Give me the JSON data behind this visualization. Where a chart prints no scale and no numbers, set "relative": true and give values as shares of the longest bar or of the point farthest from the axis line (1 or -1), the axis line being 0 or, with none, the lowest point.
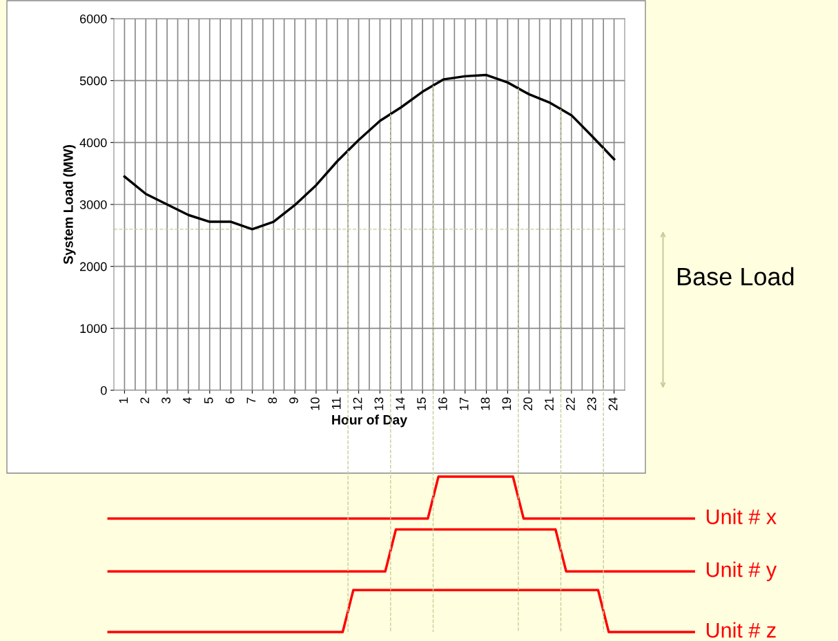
{
  "chart_data": [
    {
      "type": "line",
      "xlabel": "Hour of Day",
      "ylabel": "System Load (MW)",
      "x": [
        1,
        2,
        3,
        4,
        5,
        6,
        7,
        8,
        9,
        10,
        11,
        12,
        13,
        14,
        15,
        16,
        17,
        18,
        19,
        20,
        21,
        22,
        23,
        24
      ],
      "series": [
        {
          "color": "#000000",
          "values": [
            3450,
            3170,
            3000,
            2830,
            2720,
            2720,
            2600,
            2720,
            2990,
            3310,
            3700,
            4040,
            4350,
            4570,
            4820,
            5020,
            5070,
            5090,
            4970,
            4780,
            4640,
            4440,
            4090,
            3730
          ]
        }
      ],
      "xlim": [
        0.5,
        24.5
      ],
      "xticks": [
        1,
        2,
        3,
        4,
        5,
        6,
        7,
        8,
        9,
        10,
        11,
        12,
        13,
        14,
        15,
        16,
        17,
        18,
        19,
        20,
        21,
        22,
        23,
        24
      ],
      "ylim": [
        0,
        6000
      ],
      "yticks": [
        0,
        1000,
        2000,
        3000,
        4000,
        5000,
        6000
      ],
      "grid": true,
      "marker": "none",
      "line_style": "solid",
      "ref_lines": [
        {
          "axis": "y",
          "value": 2600,
          "label": "Base Load",
          "color": "#c8cc99",
          "line_style": "dashed"
        },
        {
          "axis": "x",
          "value": 11.5,
          "color": "#c8cc99",
          "line_style": "dashed"
        },
        {
          "axis": "x",
          "value": 13.5,
          "color": "#c8cc99",
          "line_style": "dashed"
        },
        {
          "axis": "x",
          "value": 15.5,
          "color": "#c8cc99",
          "line_style": "dashed"
        },
        {
          "axis": "x",
          "value": 19.5,
          "color": "#c8cc99",
          "line_style": "dashed"
        },
        {
          "axis": "x",
          "value": 21.5,
          "color": "#c8cc99",
          "line_style": "dashed"
        },
        {
          "axis": "x",
          "value": 23.5,
          "color": "#c8cc99",
          "line_style": "dashed"
        }
      ]
    },
    {
      "type": "line",
      "relative": true,
      "tick_labels": false,
      "legend": false,
      "categories": [
        null,
        null,
        null,
        null,
        null,
        null,
        null,
        null,
        null,
        null,
        null,
        null,
        null,
        null,
        null,
        null,
        null,
        null,
        null,
        null,
        null,
        null,
        null,
        null,
        null,
        null,
        null,
        null,
        null,
        null,
        null,
        null,
        null,
        null,
        null,
        null,
        null,
        null,
        null,
        null,
        null,
        null,
        null,
        null,
        null,
        null,
        null,
        null,
        null,
        null,
        null,
        null,
        null,
        null,
        null,
        null
      ],
      "series": [
        {
          "name": "Unit # x",
          "color": "#ff0000",
          "values": [
            0.73,
            0.73,
            0.73,
            0.73,
            0.73,
            0.73,
            0.73,
            0.73,
            0.73,
            0.73,
            0.73,
            0.73,
            0.73,
            0.73,
            0.73,
            0.73,
            0.73,
            0.73,
            0.73,
            0.73,
            0.73,
            0.73,
            0.73,
            0.73,
            0.73,
            0.73,
            0.73,
            0.73,
            0.73,
            0.73,
            0.73,
            1.0,
            1.0,
            1.0,
            1.0,
            1.0,
            1.0,
            1.0,
            1.0,
            0.73,
            0.73,
            0.73,
            0.73,
            0.73,
            0.73,
            0.73,
            0.73,
            0.73,
            0.73,
            0.73,
            0.73,
            0.73,
            0.73,
            0.73,
            0.73,
            0.73
          ]
        },
        {
          "name": "Unit # y",
          "color": "#ff0000",
          "values": [
            0.39,
            0.39,
            0.39,
            0.39,
            0.39,
            0.39,
            0.39,
            0.39,
            0.39,
            0.39,
            0.39,
            0.39,
            0.39,
            0.39,
            0.39,
            0.39,
            0.39,
            0.39,
            0.39,
            0.39,
            0.39,
            0.39,
            0.39,
            0.39,
            0.39,
            0.39,
            0.39,
            0.66,
            0.66,
            0.66,
            0.66,
            0.66,
            0.66,
            0.66,
            0.66,
            0.66,
            0.66,
            0.66,
            0.66,
            0.66,
            0.66,
            0.66,
            0.66,
            0.39,
            0.39,
            0.39,
            0.39,
            0.39,
            0.39,
            0.39,
            0.39,
            0.39,
            0.39,
            0.39,
            0.39,
            0.39
          ]
        },
        {
          "name": "Unit # z",
          "color": "#ff0000",
          "values": [
            0,
            0,
            0,
            0,
            0,
            0,
            0,
            0,
            0,
            0,
            0,
            0,
            0,
            0,
            0,
            0,
            0,
            0,
            0,
            0,
            0,
            0,
            0,
            0.27,
            0.27,
            0.27,
            0.27,
            0.27,
            0.27,
            0.27,
            0.27,
            0.27,
            0.27,
            0.27,
            0.27,
            0.27,
            0.27,
            0.27,
            0.27,
            0.27,
            0.27,
            0.27,
            0.27,
            0.27,
            0.27,
            0.27,
            0.27,
            0,
            0,
            0,
            0,
            0,
            0,
            0,
            0,
            0
          ]
        }
      ]
    }
  ]
}
